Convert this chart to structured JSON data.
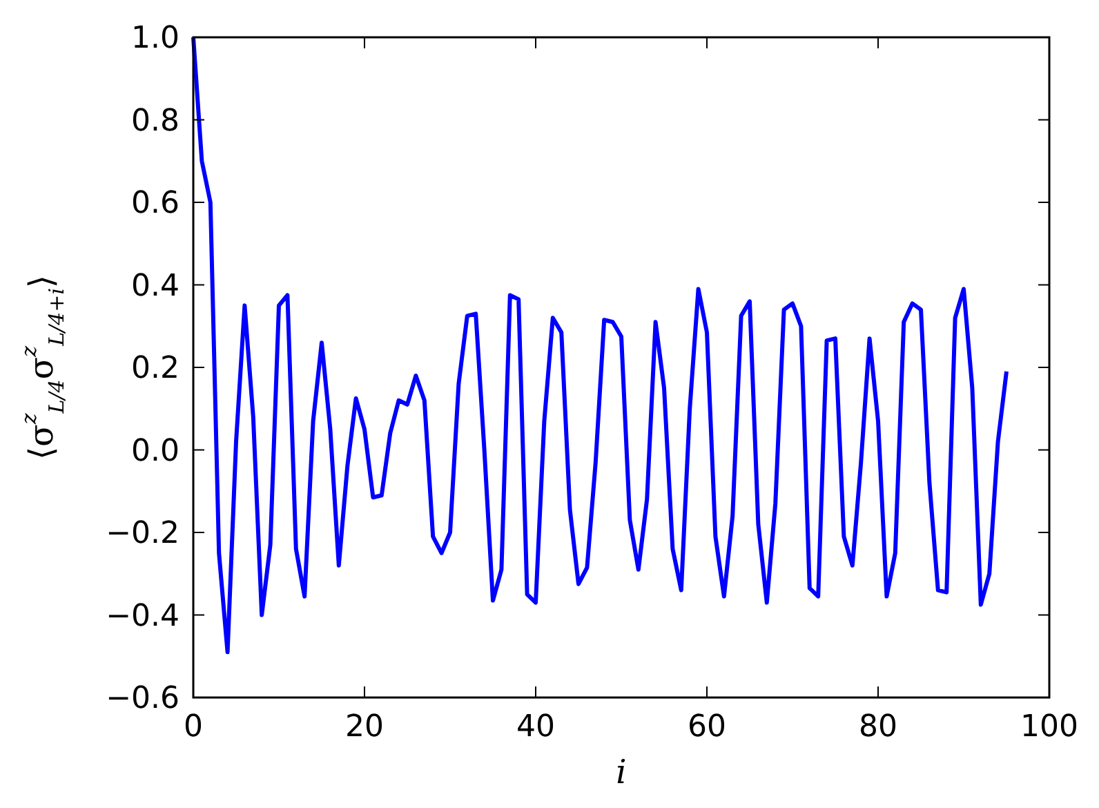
{
  "chart_data": {
    "type": "line",
    "xlabel": "i",
    "ylabel": "⟨σ$^{z}$$_{L/4}$σ$^{z}$$_{L/4+i}$⟩",
    "x": [
      0,
      1,
      2,
      3,
      4,
      5,
      6,
      7,
      8,
      9,
      10,
      11,
      12,
      13,
      14,
      15,
      16,
      17,
      18,
      19,
      20,
      21,
      22,
      23,
      24,
      25,
      26,
      27,
      28,
      29,
      30,
      31,
      32,
      33,
      34,
      35,
      36,
      37,
      38,
      39,
      40,
      41,
      42,
      43,
      44,
      45,
      46,
      47,
      48,
      49,
      50,
      51,
      52,
      53,
      54,
      55,
      56,
      57,
      58,
      59,
      60,
      61,
      62,
      63,
      64,
      65,
      66,
      67,
      68,
      69,
      70,
      71,
      72,
      73,
      74,
      75,
      76,
      77,
      78,
      79,
      80,
      81,
      82,
      83,
      84,
      85,
      86,
      87,
      88,
      89,
      90,
      91,
      92,
      93,
      94,
      95
    ],
    "series": [
      {
        "color": "#0000ff",
        "values": [
          1.0,
          0.7,
          0.6,
          -0.25,
          -0.49,
          0.02,
          0.35,
          0.08,
          -0.4,
          -0.23,
          0.35,
          0.375,
          -0.24,
          -0.355,
          0.07,
          0.26,
          0.05,
          -0.28,
          -0.04,
          0.125,
          0.05,
          -0.115,
          -0.11,
          0.04,
          0.12,
          0.11,
          0.18,
          0.12,
          -0.21,
          -0.25,
          -0.2,
          0.16,
          0.325,
          0.33,
          0.0,
          -0.365,
          -0.29,
          0.375,
          0.365,
          -0.35,
          -0.37,
          0.07,
          0.32,
          0.285,
          -0.145,
          -0.325,
          -0.285,
          -0.03,
          0.315,
          0.31,
          0.275,
          -0.17,
          -0.29,
          -0.12,
          0.31,
          0.15,
          -0.24,
          -0.34,
          0.1,
          0.39,
          0.285,
          -0.21,
          -0.355,
          -0.16,
          0.325,
          0.36,
          -0.18,
          -0.37,
          -0.13,
          0.34,
          0.355,
          0.3,
          -0.335,
          -0.355,
          0.265,
          0.27,
          -0.21,
          -0.28,
          -0.03,
          0.27,
          0.07,
          -0.355,
          -0.25,
          0.31,
          0.355,
          0.34,
          -0.08,
          -0.34,
          -0.345,
          0.32,
          0.39,
          0.15,
          -0.375,
          -0.3,
          0.02,
          0.19
        ]
      }
    ],
    "xlim": [
      0,
      100
    ],
    "xticks": [
      0,
      20,
      40,
      60,
      80,
      100
    ],
    "ylim": [
      -0.6,
      1.0
    ],
    "yticks": [
      {
        "value": -0.6,
        "label": "−0.6"
      },
      {
        "value": -0.4,
        "label": "−0.4"
      },
      {
        "value": -0.2,
        "label": "−0.2"
      },
      {
        "value": 0,
        "label": "0.0"
      },
      {
        "value": 0.2,
        "label": "0.2"
      },
      {
        "value": 0.4,
        "label": "0.4"
      },
      {
        "value": 0.6,
        "label": "0.6"
      },
      {
        "value": 0.8,
        "label": "0.8"
      },
      {
        "value": 1.0,
        "label": "1.0"
      }
    ],
    "grid": false,
    "marker": "none",
    "line_style": "solid"
  }
}
